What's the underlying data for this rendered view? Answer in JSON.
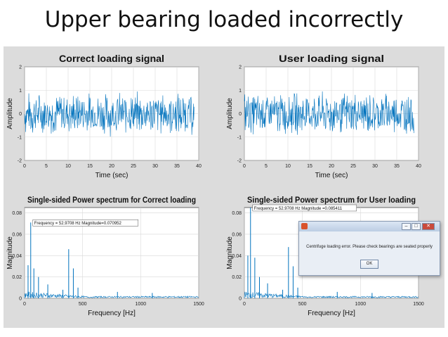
{
  "slide": {
    "title": "Upper bearing loaded incorrectly"
  },
  "dialog": {
    "message": "Centrifuge loading error. Please check bearings are seated properly",
    "ok_label": "OK",
    "minimize_glyph": "–",
    "maximize_glyph": "□",
    "close_glyph": "✕"
  },
  "chart_data": [
    {
      "type": "line",
      "title": "Correct loading signal",
      "xlabel": "Time (sec)",
      "ylabel": "Amplitude",
      "xlim": [
        0,
        40
      ],
      "ylim": [
        -2,
        2
      ],
      "xticks": [
        0,
        5,
        10,
        15,
        20,
        25,
        30,
        35,
        40
      ],
      "yticks": [
        -2,
        -1,
        0,
        1,
        2
      ],
      "signal_range": [
        0,
        39
      ],
      "signal_envelope": [
        -1,
        1
      ],
      "color": "#0072bd",
      "grid": true
    },
    {
      "type": "line",
      "title": "User loading signal",
      "xlabel": "Time (sec)",
      "ylabel": "Amplitude",
      "xlim": [
        0,
        40
      ],
      "ylim": [
        -2,
        2
      ],
      "xticks": [
        0,
        5,
        10,
        15,
        20,
        25,
        30,
        35,
        40
      ],
      "yticks": [
        -2,
        -1,
        0,
        1,
        2
      ],
      "signal_range": [
        0,
        39
      ],
      "signal_envelope": [
        -1,
        1
      ],
      "color": "#0072bd",
      "grid": true
    },
    {
      "type": "line",
      "title": "Single-sided Power spectrum for Correct loading",
      "xlabel": "Frequency [Hz]",
      "ylabel": "Magnitude",
      "xlim": [
        0,
        1500
      ],
      "ylim": [
        0,
        0.085
      ],
      "xticks": [
        0,
        500,
        1000,
        1500
      ],
      "yticks": [
        0,
        0.02,
        0.04,
        0.06,
        0.08
      ],
      "peaks": [
        {
          "x": 53,
          "y": 0.071
        },
        {
          "x": 30,
          "y": 0.031
        },
        {
          "x": 80,
          "y": 0.028
        },
        {
          "x": 120,
          "y": 0.02
        },
        {
          "x": 200,
          "y": 0.013
        },
        {
          "x": 330,
          "y": 0.008
        },
        {
          "x": 380,
          "y": 0.046
        },
        {
          "x": 420,
          "y": 0.028
        },
        {
          "x": 460,
          "y": 0.01
        },
        {
          "x": 800,
          "y": 0.006
        },
        {
          "x": 1100,
          "y": 0.005
        }
      ],
      "annotation": "Frequency = 52.9708 Hz    Magnitude=0.070952",
      "color": "#0072bd",
      "grid": true
    },
    {
      "type": "line",
      "title": "Single-sided Power spectrum for User loading",
      "xlabel": "Frequency [Hz]",
      "ylabel": "Magnitude",
      "xlim": [
        0,
        1500
      ],
      "ylim": [
        0,
        0.085
      ],
      "xticks": [
        0,
        500,
        1000,
        1500
      ],
      "yticks": [
        0,
        0.02,
        0.04,
        0.06,
        0.08
      ],
      "peaks": [
        {
          "x": 53,
          "y": 0.085
        },
        {
          "x": 30,
          "y": 0.04
        },
        {
          "x": 90,
          "y": 0.038
        },
        {
          "x": 130,
          "y": 0.02
        },
        {
          "x": 200,
          "y": 0.014
        },
        {
          "x": 330,
          "y": 0.008
        },
        {
          "x": 380,
          "y": 0.048
        },
        {
          "x": 420,
          "y": 0.03
        },
        {
          "x": 460,
          "y": 0.01
        },
        {
          "x": 800,
          "y": 0.006
        },
        {
          "x": 1100,
          "y": 0.005
        }
      ],
      "annotation": "Frequency = 52.9708 Hz    Magnitude =0.085411",
      "color": "#0072bd",
      "grid": true
    }
  ]
}
